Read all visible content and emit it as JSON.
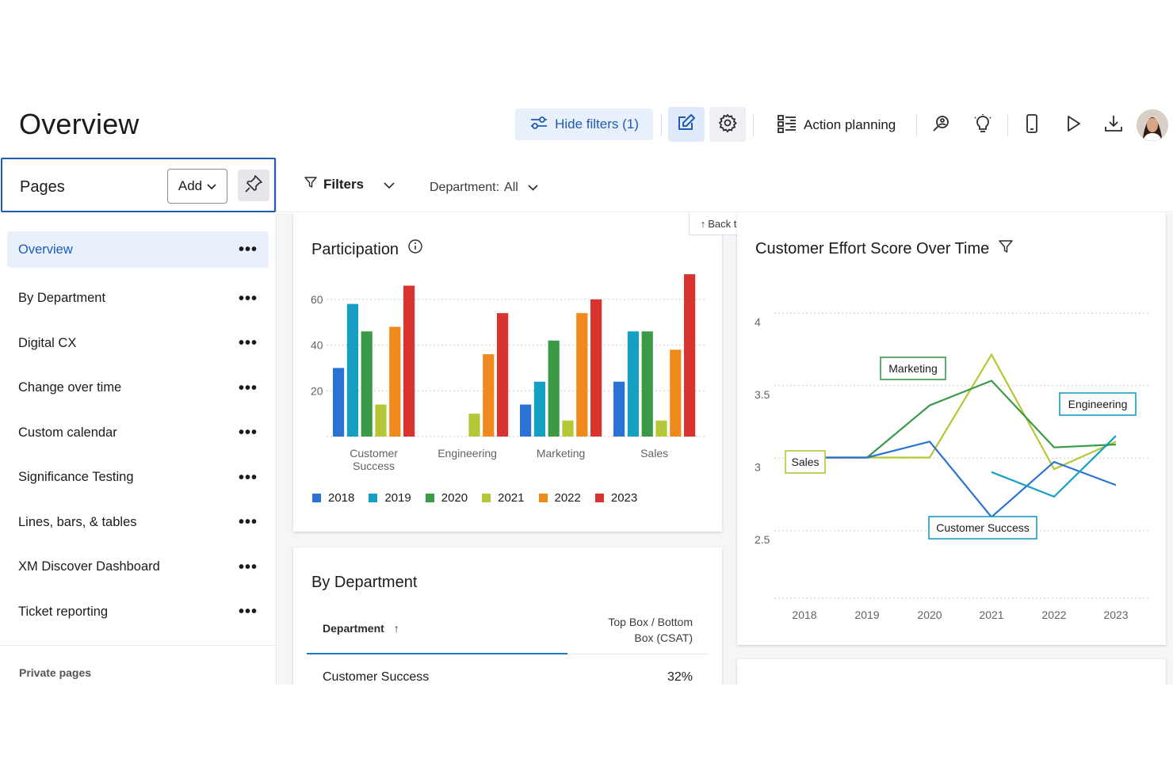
{
  "header": {
    "title": "Overview",
    "hide_filters_label": "Hide filters (1)",
    "action_planning_label": "Action planning"
  },
  "sidebar": {
    "pages_label": "Pages",
    "add_label": "Add",
    "items": [
      {
        "label": "Overview",
        "active": true
      },
      {
        "label": "By Department"
      },
      {
        "label": "Digital CX"
      },
      {
        "label": "Change over time"
      },
      {
        "label": "Custom calendar"
      },
      {
        "label": "Significance Testing"
      },
      {
        "label": "Lines, bars, & tables"
      },
      {
        "label": "XM Discover Dashboard"
      },
      {
        "label": "Ticket reporting"
      }
    ],
    "private_pages_label": "Private pages"
  },
  "filters": {
    "label": "Filters",
    "department_label": "Department:",
    "department_value": "All"
  },
  "back_to_top": "Back to top",
  "participation": {
    "title": "Participation"
  },
  "by_department": {
    "title": "By Department",
    "col_department": "Department",
    "col_topbox_line1": "Top Box / Bottom",
    "col_topbox_line2": "Box (CSAT)",
    "rows": [
      {
        "department": "Customer Success",
        "value": "32%"
      }
    ]
  },
  "effort": {
    "title": "Customer Effort Score Over Time"
  },
  "colors": {
    "accent": "#1f5bb5",
    "2018": "#2a72d4",
    "2019": "#159fc2",
    "2020": "#3a9a48",
    "2021": "#b5c734",
    "2022": "#f08a1c",
    "2023": "#d93330"
  },
  "chart_data": [
    {
      "type": "bar",
      "title": "Participation",
      "categories": [
        "Customer Success",
        "Engineering",
        "Marketing",
        "Sales"
      ],
      "ylim": [
        0,
        70
      ],
      "yticks": [
        20,
        40,
        60
      ],
      "grid": true,
      "legend": "bottom",
      "series": [
        {
          "name": "2018",
          "values": [
            30,
            0,
            14,
            24
          ]
        },
        {
          "name": "2019",
          "values": [
            58,
            0,
            24,
            46
          ]
        },
        {
          "name": "2020",
          "values": [
            46,
            0,
            42,
            46
          ]
        },
        {
          "name": "2021",
          "values": [
            14,
            10,
            7,
            7
          ]
        },
        {
          "name": "2022",
          "values": [
            48,
            36,
            54,
            38
          ]
        },
        {
          "name": "2023",
          "values": [
            66,
            54,
            60,
            71
          ]
        }
      ]
    },
    {
      "type": "line",
      "title": "Customer Effort Score Over Time",
      "x": [
        "2018",
        "2019",
        "2020",
        "2021",
        "2022",
        "2023"
      ],
      "ylim": [
        2.1,
        4.1
      ],
      "yticks": [
        2.5,
        3,
        3.5,
        4
      ],
      "grid": true,
      "series": [
        {
          "name": "Sales",
          "values": [
            3.07,
            3.07,
            3.07,
            3.78,
            2.99,
            3.18
          ]
        },
        {
          "name": "Marketing",
          "values": [
            3.07,
            3.07,
            3.43,
            3.6,
            3.14,
            3.16
          ]
        },
        {
          "name": "Customer Success",
          "values": [
            3.07,
            3.07,
            3.18,
            2.66,
            3.04,
            2.88
          ]
        },
        {
          "name": "Engineering",
          "values": [
            null,
            null,
            null,
            2.97,
            2.8,
            3.22
          ]
        }
      ]
    }
  ]
}
